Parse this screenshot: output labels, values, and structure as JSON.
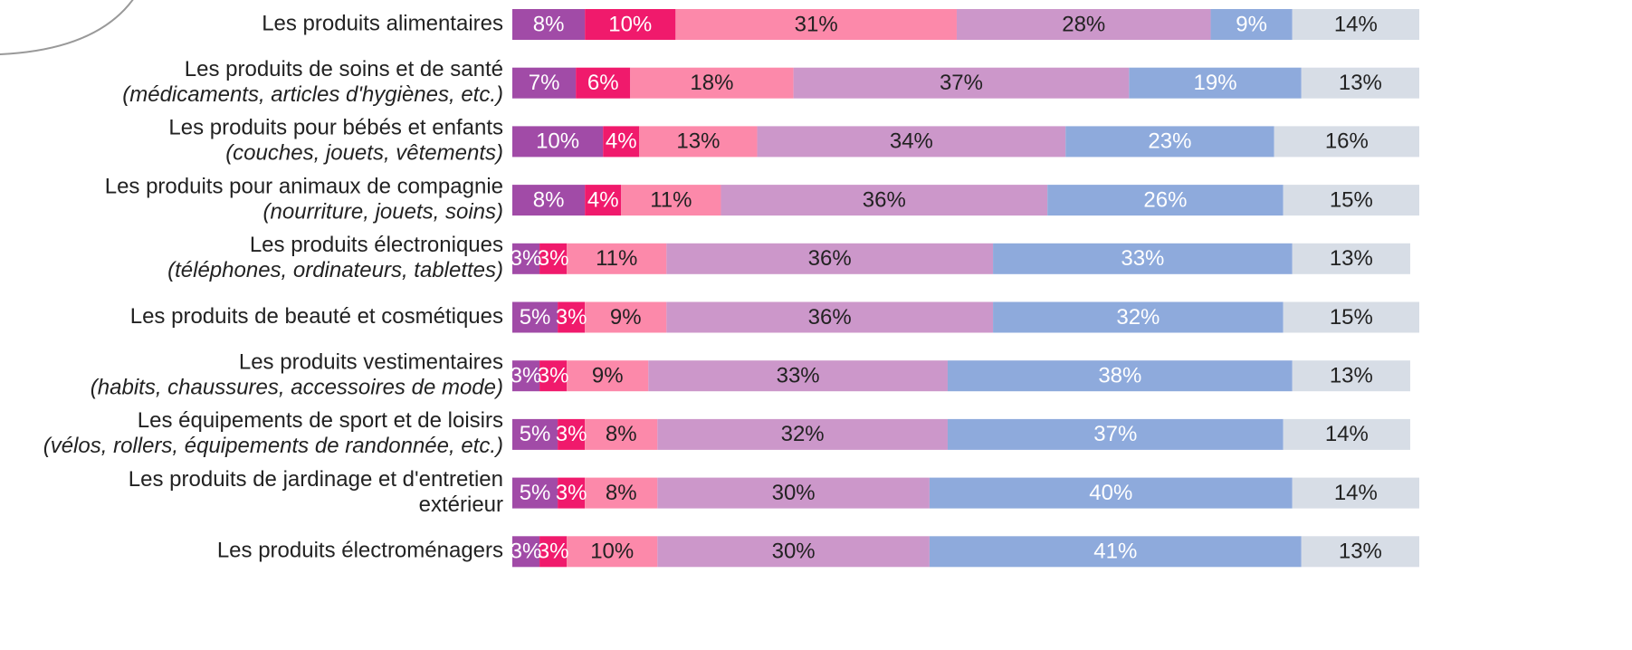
{
  "chart_data": {
    "type": "stacked_barh",
    "categories": [
      [
        "Les produits alimentaires"
      ],
      [
        "Les produits de soins et de santé",
        "(médicaments, articles d'hygiènes, etc.)"
      ],
      [
        "Les produits pour bébés et enfants",
        "(couches, jouets, vêtements)"
      ],
      [
        "Les produits pour animaux de compagnie",
        "(nourriture, jouets, soins)"
      ],
      [
        "Les produits électroniques",
        "(téléphones, ordinateurs, tablettes)"
      ],
      [
        "Les produits de beauté et cosmétiques"
      ],
      [
        "Les produits vestimentaires",
        "(habits, chaussures, accessoires de mode)"
      ],
      [
        "Les équipements de sport et de loisirs",
        "(vélos, rollers, équipements de randonnée, etc.)"
      ],
      [
        "Les produits de jardinage et d'entretien",
        "extérieur"
      ],
      [
        "Les produits électroménagers"
      ]
    ],
    "xlim": [
      0,
      100
    ],
    "series": [
      {
        "color": "#a14ba7",
        "label_color": "#ffffff",
        "values": [
          8,
          7,
          10,
          8,
          3,
          5,
          3,
          5,
          5,
          3
        ],
        "value_labels": [
          "8%",
          "7%",
          "10%",
          "8%",
          "3%",
          "5%",
          "3%",
          "5%",
          "5%",
          "3%"
        ]
      },
      {
        "color": "#f01a6c",
        "label_color": "#ffffff",
        "values": [
          10,
          6,
          4,
          4,
          3,
          3,
          3,
          3,
          3,
          3
        ],
        "value_labels": [
          "10%",
          "6%",
          "4%",
          "4%",
          "3%",
          "3%",
          "3%",
          "3%",
          "3%",
          "3%"
        ]
      },
      {
        "color": "#fc89aa",
        "label_color": "#222222",
        "values": [
          31,
          18,
          13,
          11,
          11,
          9,
          9,
          8,
          8,
          10
        ],
        "value_labels": [
          "31%",
          "18%",
          "13%",
          "11%",
          "11%",
          "9%",
          "9%",
          "8%",
          "8%",
          "10%"
        ]
      },
      {
        "color": "#cc97ca",
        "label_color": "#222222",
        "values": [
          28,
          37,
          34,
          36,
          36,
          36,
          33,
          32,
          30,
          30
        ],
        "value_labels": [
          "28%",
          "37%",
          "34%",
          "36%",
          "36%",
          "36%",
          "33%",
          "32%",
          "30%",
          "30%"
        ]
      },
      {
        "color": "#8eaadc",
        "label_color": "#ffffff",
        "values": [
          9,
          19,
          23,
          26,
          33,
          32,
          38,
          37,
          40,
          41
        ],
        "value_labels": [
          "9%",
          "19%",
          "23%",
          "26%",
          "33%",
          "32%",
          "38%",
          "37%",
          "40%",
          "41%"
        ]
      },
      {
        "color": "#d7dde6",
        "label_color": "#222222",
        "values": [
          14,
          13,
          16,
          15,
          13,
          15,
          13,
          14,
          14,
          13
        ],
        "value_labels": [
          "14%",
          "13%",
          "16%",
          "15%",
          "13%",
          "15%",
          "13%",
          "14%",
          "14%",
          "13%"
        ]
      }
    ]
  }
}
